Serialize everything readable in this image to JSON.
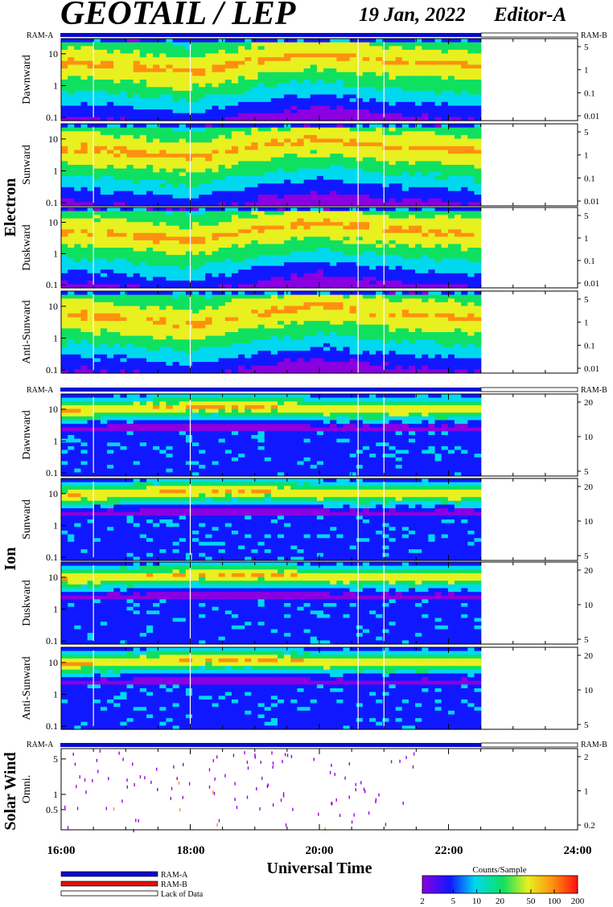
{
  "header": {
    "title": "GEOTAIL / LEP",
    "date": "19 Jan, 2022",
    "editor": "Editor-A"
  },
  "groups": {
    "electron": "Electron",
    "ion": "Ion",
    "solar_wind": "Solar Wind"
  },
  "bar_labels": {
    "left": "RAM-A",
    "right": "RAM-B"
  },
  "x_axis": {
    "label": "Universal Time",
    "ticks": [
      "16:00",
      "18:00",
      "20:00",
      "22:00",
      "24:00"
    ]
  },
  "legend": {
    "ram_a": "RAM-A",
    "ram_b": "RAM-B",
    "lack": "Lack of Data"
  },
  "colorbar": {
    "title": "Counts/Sample",
    "ticks": [
      "2",
      "5",
      "10",
      "20",
      "50",
      "100",
      "200"
    ]
  },
  "colors": {
    "ram_a": "#0a0ad0",
    "ram_b": "#e01010",
    "frame": "#000000"
  },
  "chart_data": [
    {
      "type": "heatmap",
      "group": "Electron",
      "panel": "Dawnward",
      "ylabel": "Dawnward",
      "x_range": [
        "16:00",
        "24:00"
      ],
      "data_end": "22:30",
      "yticks": [
        "10",
        "1",
        "0.1"
      ],
      "right_ticks": [
        "5",
        "1",
        "0.1",
        "0.01"
      ],
      "ridge": [
        [
          16.2,
          5
        ],
        [
          17.0,
          4
        ],
        [
          18.0,
          2.5
        ],
        [
          19.0,
          6
        ],
        [
          20.0,
          10
        ],
        [
          21.0,
          6
        ],
        [
          22.5,
          4
        ]
      ]
    },
    {
      "type": "heatmap",
      "group": "Electron",
      "panel": "Sunward",
      "ylabel": "Sunward",
      "x_range": [
        "16:00",
        "24:00"
      ],
      "data_end": "22:30",
      "yticks": [
        "10",
        "1",
        "0.1"
      ],
      "right_ticks": [
        "5",
        "1",
        "0.1",
        "0.01"
      ],
      "ridge": [
        [
          16.2,
          5
        ],
        [
          17.0,
          4
        ],
        [
          18.0,
          2.5
        ],
        [
          19.0,
          6
        ],
        [
          20.0,
          10
        ],
        [
          21.0,
          6
        ],
        [
          22.5,
          4
        ]
      ]
    },
    {
      "type": "heatmap",
      "group": "Electron",
      "panel": "Duskward",
      "ylabel": "Duskward",
      "x_range": [
        "16:00",
        "24:00"
      ],
      "data_end": "22:30",
      "yticks": [
        "10",
        "1",
        "0.1"
      ],
      "right_ticks": [
        "5",
        "1",
        "0.1",
        "0.01"
      ],
      "ridge": [
        [
          16.2,
          5
        ],
        [
          17.0,
          4
        ],
        [
          18.0,
          2.5
        ],
        [
          19.0,
          6
        ],
        [
          20.0,
          10
        ],
        [
          21.0,
          6
        ],
        [
          22.5,
          4
        ]
      ]
    },
    {
      "type": "heatmap",
      "group": "Electron",
      "panel": "Anti-Sunward",
      "ylabel": "Anti-Sunward",
      "x_range": [
        "16:00",
        "24:00"
      ],
      "data_end": "22:30",
      "yticks": [
        "10",
        "1",
        "0.1"
      ],
      "right_ticks": [
        "5",
        "1",
        "0.1",
        "0.01"
      ],
      "ridge": [
        [
          16.2,
          5
        ],
        [
          17.0,
          4
        ],
        [
          18.0,
          2.5
        ],
        [
          19.0,
          6
        ],
        [
          20.0,
          10
        ],
        [
          21.0,
          6
        ],
        [
          22.5,
          4
        ]
      ]
    },
    {
      "type": "heatmap",
      "group": "Ion",
      "panel": "Dawnward",
      "ylabel": "Dawnward",
      "x_range": [
        "16:00",
        "24:00"
      ],
      "data_end": "22:30",
      "yticks": [
        "10",
        "1",
        "0.1"
      ],
      "right_ticks": [
        "20",
        "10",
        "5"
      ],
      "ridge": [
        [
          16.2,
          9
        ],
        [
          18.0,
          12
        ],
        [
          19.2,
          12
        ],
        [
          20.0,
          10
        ],
        [
          22.5,
          10
        ]
      ]
    },
    {
      "type": "heatmap",
      "group": "Ion",
      "panel": "Sunward",
      "ylabel": "Sunward",
      "x_range": [
        "16:00",
        "24:00"
      ],
      "data_end": "22:30",
      "yticks": [
        "10",
        "1",
        "0.1"
      ],
      "right_ticks": [
        "20",
        "10",
        "5"
      ],
      "ridge": [
        [
          16.2,
          9
        ],
        [
          18.0,
          12
        ],
        [
          19.2,
          12
        ],
        [
          20.0,
          10
        ],
        [
          22.5,
          10
        ]
      ]
    },
    {
      "type": "heatmap",
      "group": "Ion",
      "panel": "Duskward",
      "ylabel": "Duskward",
      "x_range": [
        "16:00",
        "24:00"
      ],
      "data_end": "22:30",
      "yticks": [
        "10",
        "1",
        "0.1"
      ],
      "right_ticks": [
        "20",
        "10",
        "5"
      ],
      "ridge": [
        [
          16.2,
          9
        ],
        [
          18.0,
          12
        ],
        [
          19.2,
          12
        ],
        [
          20.0,
          10
        ],
        [
          22.5,
          10
        ]
      ]
    },
    {
      "type": "heatmap",
      "group": "Ion",
      "panel": "Anti-Sunward",
      "ylabel": "Anti-Sunward",
      "x_range": [
        "16:00",
        "24:00"
      ],
      "data_end": "22:30",
      "yticks": [
        "10",
        "1",
        "0.1"
      ],
      "right_ticks": [
        "20",
        "10",
        "5"
      ],
      "ridge": [
        [
          16.2,
          9
        ],
        [
          18.0,
          12
        ],
        [
          19.2,
          12
        ],
        [
          20.0,
          10
        ],
        [
          22.5,
          10
        ]
      ]
    },
    {
      "type": "scatter",
      "group": "Solar Wind",
      "panel": "Omni.",
      "ylabel": "Omni.",
      "x_range": [
        "16:00",
        "24:00"
      ],
      "yticks": [
        "5",
        "1",
        "0.5"
      ],
      "right_ticks": [
        "2",
        "1",
        "0.2"
      ]
    }
  ]
}
